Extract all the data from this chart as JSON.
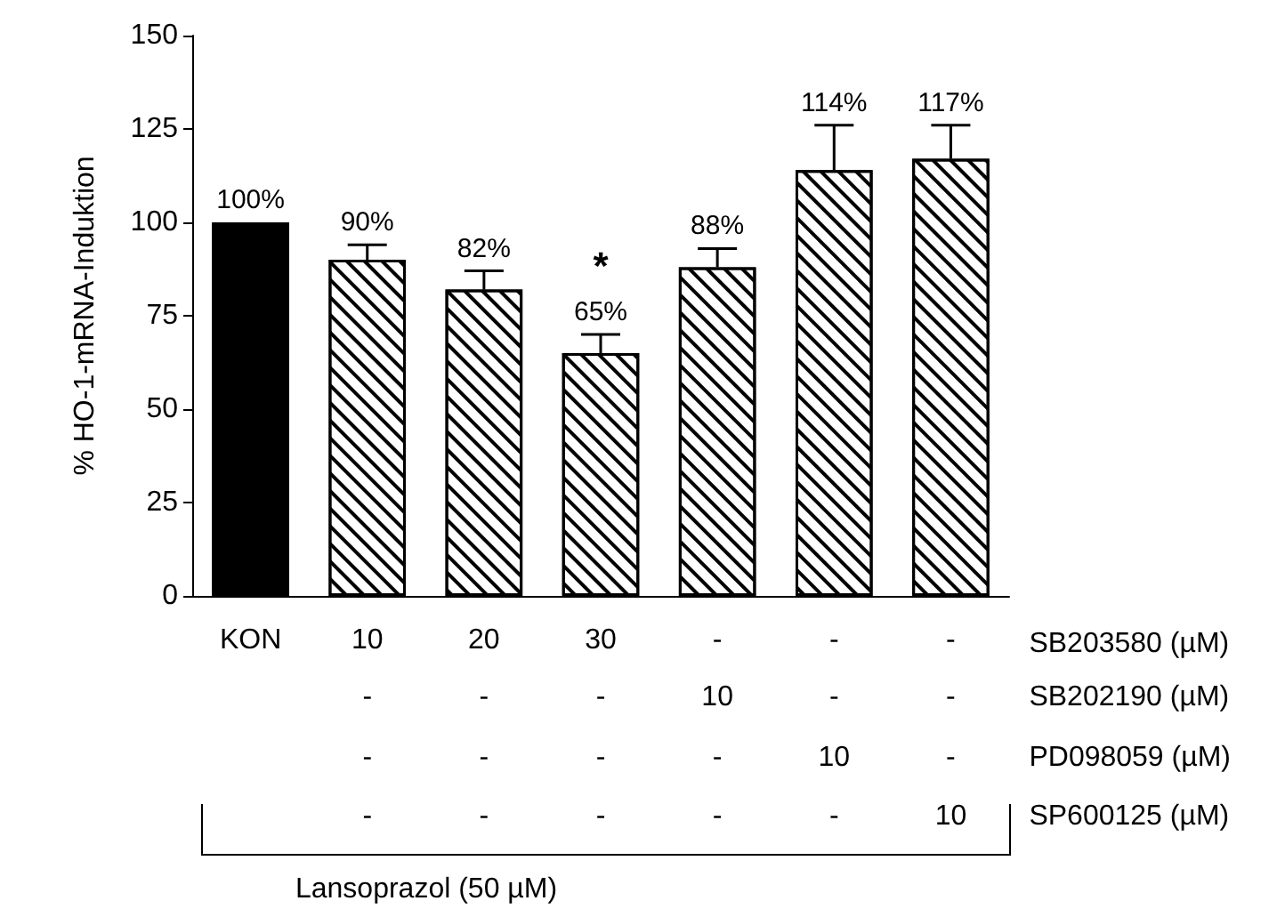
{
  "chart_data": {
    "type": "bar",
    "ylabel": "% HO-1-mRNA-Induktion",
    "categories": [
      "KON",
      "10",
      "20",
      "30",
      "-",
      "-",
      "-"
    ],
    "values": [
      100,
      90,
      82,
      65,
      88,
      114,
      117
    ],
    "colors": [
      "#000000",
      "#ffffff",
      "#ffffff",
      "#ffffff",
      "#ffffff",
      "#ffffff",
      "#ffffff"
    ],
    "errors": [
      null,
      [
        90,
        94
      ],
      [
        82,
        87
      ],
      [
        65,
        70
      ],
      [
        88,
        93
      ],
      [
        114,
        126
      ],
      [
        117,
        126
      ]
    ],
    "value_labels": [
      "100%",
      "90%",
      "82%",
      "65%",
      "88%",
      "114%",
      "117%"
    ],
    "ylim": [
      0,
      150
    ],
    "yticks": [
      0,
      25,
      50,
      75,
      100,
      125,
      150
    ],
    "grid": false,
    "annotations": [
      "SB203580 (µM)",
      "SB202190 (µM)",
      "PD098059 (µM)",
      "SP600125 (µM)",
      "-",
      "-",
      "-",
      "10",
      "-",
      "-",
      "-",
      "-",
      "-",
      "-",
      "10",
      "-",
      "-",
      "-",
      "-",
      "-",
      "-",
      "10",
      "*",
      "Lansoprazol (50 µM)"
    ]
  }
}
